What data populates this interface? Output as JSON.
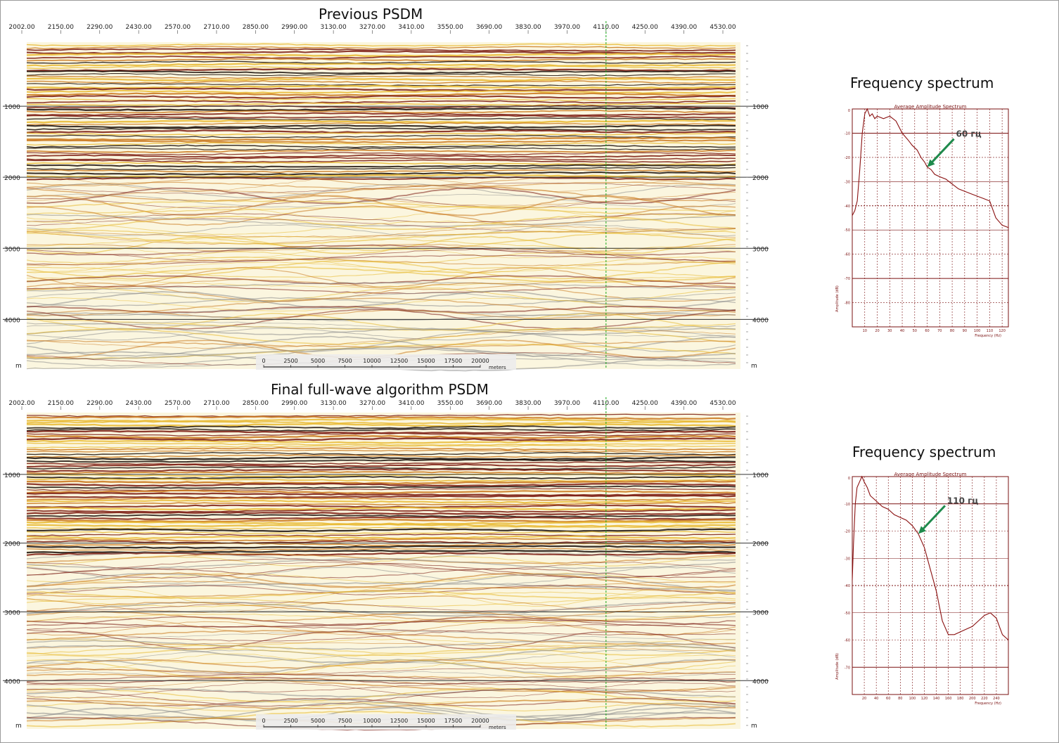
{
  "sections": [
    {
      "title": "Previous PSDM",
      "x_ticks": [
        "2002.00",
        "2150.00",
        "2290.00",
        "2430.00",
        "2570.00",
        "2710.00",
        "2850.00",
        "2990.00",
        "3130.00",
        "3270.00",
        "3410.00",
        "3550.00",
        "3690.00",
        "3830.00",
        "3970.00",
        "4110.00",
        "4250.00",
        "4390.00",
        "4530.00"
      ],
      "depth_ticks": [
        "1000",
        "2000",
        "3000",
        "4000"
      ],
      "unit": "m",
      "scale_labels": [
        "0",
        "2500",
        "5000",
        "7500",
        "10000",
        "12500",
        "15000",
        "17500",
        "20000"
      ],
      "scale_unit": "meters"
    },
    {
      "title": "Final full-wave algorithm PSDM",
      "x_ticks": [
        "2002.00",
        "2150.00",
        "2290.00",
        "2430.00",
        "2570.00",
        "2710.00",
        "2850.00",
        "2990.00",
        "3130.00",
        "3270.00",
        "3410.00",
        "3550.00",
        "3690.00",
        "3830.00",
        "3970.00",
        "4110.00",
        "4250.00",
        "4390.00",
        "4530.00"
      ],
      "depth_ticks": [
        "1000",
        "2000",
        "3000",
        "4000"
      ],
      "unit": "m",
      "scale_labels": [
        "0",
        "2500",
        "5000",
        "7500",
        "10000",
        "12500",
        "15000",
        "17500",
        "20000"
      ],
      "scale_unit": "meters"
    }
  ],
  "spectra": [
    {
      "title": "Frequency spectrum",
      "annotation": "60 гц",
      "inner_title": "Average Amplitude Spectrum",
      "xlabel": "Frequency (Hz)",
      "ylabel": "Amplitude (dB)"
    },
    {
      "title": "Frequency spectrum",
      "annotation": "110 гц",
      "inner_title": "Average Amplitude Spectrum",
      "xlabel": "Frequency (Hz)",
      "ylabel": "Amplitude (dB)"
    }
  ],
  "chart_data": [
    {
      "type": "line",
      "title": "Average Amplitude Spectrum",
      "xlabel": "Frequency (Hz)",
      "ylabel": "Amplitude (dB)",
      "xlim": [
        0,
        125
      ],
      "ylim": [
        -90,
        0
      ],
      "x": [
        0,
        2,
        4,
        6,
        8,
        10,
        12,
        14,
        16,
        18,
        20,
        25,
        30,
        35,
        40,
        45,
        48,
        52,
        55,
        58,
        60,
        63,
        66,
        70,
        75,
        80,
        85,
        90,
        95,
        100,
        105,
        110,
        115,
        120,
        125
      ],
      "y": [
        -44,
        -42,
        -38,
        -25,
        -10,
        -2,
        0,
        -3,
        -2,
        -4,
        -3,
        -4,
        -3,
        -5,
        -10,
        -13,
        -15,
        -17,
        -20,
        -22,
        -24,
        -25,
        -27,
        -28,
        -29,
        -31,
        -33,
        -34,
        -35,
        -36,
        -37,
        -38,
        -45,
        -48,
        -49
      ],
      "annotation": {
        "text": "60 гц",
        "x": 60
      }
    },
    {
      "type": "line",
      "title": "Average Amplitude Spectrum",
      "xlabel": "Frequency (Hz)",
      "ylabel": "Amplitude (dB)",
      "xlim": [
        0,
        260
      ],
      "ylim": [
        -80,
        0
      ],
      "x": [
        0,
        2,
        5,
        8,
        12,
        16,
        20,
        25,
        30,
        40,
        50,
        60,
        70,
        80,
        90,
        100,
        110,
        120,
        130,
        140,
        150,
        160,
        170,
        180,
        190,
        200,
        210,
        220,
        230,
        240,
        250,
        260
      ],
      "y": [
        -38,
        -25,
        -10,
        -4,
        -2,
        0,
        -2,
        -4,
        -7,
        -9,
        -11,
        -12,
        -14,
        -15,
        -16,
        -18,
        -21,
        -26,
        -34,
        -42,
        -53,
        -58,
        -58,
        -57,
        -56,
        -55,
        -53,
        -51,
        -50,
        -52,
        -58,
        -60
      ],
      "annotation": {
        "text": "110 гц",
        "x": 110
      }
    }
  ]
}
